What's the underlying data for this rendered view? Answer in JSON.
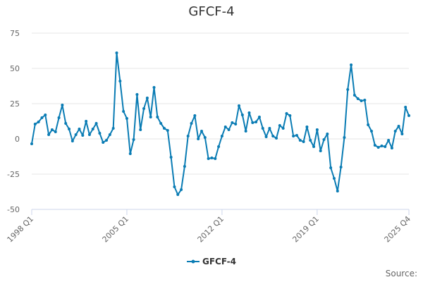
{
  "chart_data": {
    "type": "line",
    "title": "GFCF-4",
    "xlabel": "",
    "ylabel": "",
    "ylim": [
      -50,
      75
    ],
    "yticks": [
      -50,
      -25,
      0,
      25,
      50,
      75
    ],
    "xtick_labels": [
      "1998 Q1",
      "2005 Q1",
      "2012 Q1",
      "2019 Q1",
      "2025 Q4"
    ],
    "grid": true,
    "legend_position": "bottom",
    "series": [
      {
        "name": "GFCF-4",
        "color": "#0a7cb4",
        "x": [
          "1998 Q1",
          "1998 Q2",
          "1998 Q3",
          "1998 Q4",
          "1999 Q1",
          "1999 Q2",
          "1999 Q3",
          "1999 Q4",
          "2000 Q1",
          "2000 Q2",
          "2000 Q3",
          "2000 Q4",
          "2001 Q1",
          "2001 Q2",
          "2001 Q3",
          "2001 Q4",
          "2002 Q1",
          "2002 Q2",
          "2002 Q3",
          "2002 Q4",
          "2003 Q1",
          "2003 Q2",
          "2003 Q3",
          "2003 Q4",
          "2004 Q1",
          "2004 Q2",
          "2004 Q3",
          "2004 Q4",
          "2005 Q1",
          "2005 Q2",
          "2005 Q3",
          "2005 Q4",
          "2006 Q1",
          "2006 Q2",
          "2006 Q3",
          "2006 Q4",
          "2007 Q1",
          "2007 Q2",
          "2007 Q3",
          "2007 Q4",
          "2008 Q1",
          "2008 Q2",
          "2008 Q3",
          "2008 Q4",
          "2009 Q1",
          "2009 Q2",
          "2009 Q3",
          "2009 Q4",
          "2010 Q1",
          "2010 Q2",
          "2010 Q3",
          "2010 Q4",
          "2011 Q1",
          "2011 Q2",
          "2011 Q3",
          "2011 Q4",
          "2012 Q1",
          "2012 Q2",
          "2012 Q3",
          "2012 Q4",
          "2013 Q1",
          "2013 Q2",
          "2013 Q3",
          "2013 Q4",
          "2014 Q1",
          "2014 Q2",
          "2014 Q3",
          "2014 Q4",
          "2015 Q1",
          "2015 Q2",
          "2015 Q3",
          "2015 Q4",
          "2016 Q1",
          "2016 Q2",
          "2016 Q3",
          "2016 Q4",
          "2017 Q1",
          "2017 Q2",
          "2017 Q3",
          "2017 Q4",
          "2018 Q1",
          "2018 Q2",
          "2018 Q3",
          "2018 Q4",
          "2019 Q1",
          "2019 Q2",
          "2019 Q3",
          "2019 Q4",
          "2020 Q1",
          "2020 Q2",
          "2020 Q3",
          "2020 Q4",
          "2021 Q1",
          "2021 Q2",
          "2021 Q3",
          "2021 Q4",
          "2022 Q1",
          "2022 Q2",
          "2022 Q3",
          "2022 Q4",
          "2023 Q1",
          "2023 Q2",
          "2023 Q3",
          "2023 Q4",
          "2024 Q1",
          "2024 Q2",
          "2024 Q3",
          "2024 Q4",
          "2025 Q1",
          "2025 Q2",
          "2025 Q3",
          "2025 Q4"
        ],
        "values": [
          -3.5,
          10.5,
          12.0,
          15.0,
          17.0,
          3.0,
          6.5,
          5.0,
          15.0,
          24.0,
          11.0,
          7.0,
          -1.5,
          3.0,
          7.0,
          2.5,
          12.5,
          3.0,
          7.0,
          11.0,
          4.0,
          -2.5,
          -1.0,
          3.0,
          7.5,
          61.0,
          41.0,
          19.5,
          14.5,
          -10.5,
          -0.5,
          31.5,
          6.5,
          21.5,
          29.0,
          15.5,
          36.5,
          15.5,
          11.0,
          7.5,
          6.0,
          -13.0,
          -34.0,
          -39.5,
          -36.0,
          -19.5,
          2.0,
          11.0,
          16.5,
          0.0,
          5.5,
          1.0,
          -14.0,
          -13.5,
          -14.0,
          -5.5,
          2.0,
          8.5,
          6.5,
          11.5,
          10.5,
          23.5,
          17.0,
          5.5,
          18.5,
          11.5,
          12.0,
          15.5,
          7.5,
          1.5,
          7.5,
          2.0,
          0.5,
          9.5,
          7.5,
          18.0,
          16.5,
          2.0,
          2.5,
          -1.0,
          -2.0,
          8.5,
          -1.0,
          -5.5,
          6.5,
          -8.5,
          -0.5,
          3.5,
          -20.5,
          -28.0,
          -37.0,
          -20.0,
          1.0,
          35.0,
          52.5,
          31.0,
          28.5,
          27.0,
          27.5,
          10.0,
          5.5,
          -4.5,
          -6.0,
          -5.0,
          -5.5,
          -1.0,
          -6.5,
          5.5,
          9.0,
          3.5,
          22.5,
          16.5
        ]
      }
    ]
  },
  "legend": {
    "label": "GFCF-4"
  },
  "footer": {
    "source_label": "Source:"
  }
}
